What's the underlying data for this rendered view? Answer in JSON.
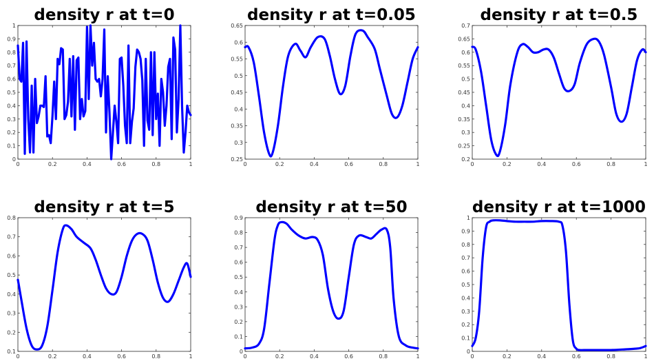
{
  "chart_data": [
    {
      "type": "line",
      "title": "density r at t=0",
      "xlim": [
        0,
        1
      ],
      "ylim": [
        0,
        1
      ],
      "xticks": [
        0,
        0.2,
        0.4,
        0.6,
        0.8,
        1
      ],
      "yticks": [
        0,
        0.1,
        0.2,
        0.3,
        0.4,
        0.5,
        0.6,
        0.7,
        0.8,
        0.9,
        1
      ],
      "xtick_labels": [
        "0",
        "0.2",
        "0.4",
        "0.6",
        "0.8",
        "1"
      ],
      "ytick_labels": [
        "0",
        "0.1",
        "0.2",
        "0.3",
        "0.4",
        "0.5",
        "0.6",
        "0.7",
        "0.8",
        "0.9",
        "1"
      ],
      "grid": false,
      "series": [
        {
          "color": "#0000ff",
          "x": [
            0,
            0.01,
            0.02,
            0.03,
            0.04,
            0.05,
            0.06,
            0.07,
            0.08,
            0.09,
            0.1,
            0.11,
            0.12,
            0.13,
            0.14,
            0.15,
            0.16,
            0.17,
            0.18,
            0.19,
            0.2,
            0.21,
            0.22,
            0.23,
            0.24,
            0.25,
            0.26,
            0.27,
            0.28,
            0.29,
            0.3,
            0.31,
            0.32,
            0.33,
            0.34,
            0.35,
            0.36,
            0.37,
            0.38,
            0.39,
            0.4,
            0.41,
            0.42,
            0.43,
            0.44,
            0.45,
            0.46,
            0.47,
            0.48,
            0.49,
            0.5,
            0.51,
            0.52,
            0.53,
            0.54,
            0.55,
            0.56,
            0.57,
            0.58,
            0.59,
            0.6,
            0.61,
            0.62,
            0.63,
            0.64,
            0.65,
            0.66,
            0.67,
            0.68,
            0.69,
            0.7,
            0.71,
            0.72,
            0.73,
            0.74,
            0.75,
            0.76,
            0.77,
            0.78,
            0.79,
            0.8,
            0.81,
            0.82,
            0.83,
            0.84,
            0.85,
            0.86,
            0.87,
            0.88,
            0.89,
            0.9,
            0.91,
            0.92,
            0.93,
            0.94,
            0.95,
            0.96,
            0.97,
            0.98,
            0.99,
            1
          ],
          "y": [
            0.85,
            0.6,
            0.58,
            0.87,
            0.04,
            0.88,
            0.3,
            0.05,
            0.55,
            0.05,
            0.6,
            0.27,
            0.32,
            0.4,
            0.4,
            0.39,
            0.62,
            0.17,
            0.18,
            0.12,
            0.32,
            0.58,
            0.3,
            0.75,
            0.71,
            0.83,
            0.82,
            0.3,
            0.33,
            0.43,
            0.75,
            0.32,
            0.77,
            0.22,
            0.74,
            0.76,
            0.3,
            0.45,
            0.32,
            0.36,
            0.99,
            0.45,
            1,
            0.7,
            0.87,
            0.6,
            0.58,
            0.6,
            0.47,
            0.6,
            0.97,
            0.2,
            0.62,
            0.35,
            0.0,
            0.2,
            0.4,
            0.28,
            0.12,
            0.75,
            0.76,
            0.55,
            0.25,
            0.12,
            0.85,
            0.12,
            0.28,
            0.38,
            0.69,
            0.82,
            0.8,
            0.75,
            0.59,
            0.1,
            0.75,
            0.29,
            0.22,
            0.8,
            0.18,
            0.8,
            0.3,
            0.49,
            0.1,
            0.6,
            0.5,
            0.25,
            0.4,
            0.69,
            0.75,
            0.15,
            0.91,
            0.82,
            0.2,
            0.45,
            1,
            0.4,
            0.05,
            0.2,
            0.4,
            0.35,
            0.33
          ]
        }
      ]
    },
    {
      "type": "line",
      "title": "density r at t=0.05",
      "xlim": [
        0,
        1
      ],
      "ylim": [
        0.25,
        0.65
      ],
      "xticks": [
        0,
        0.2,
        0.4,
        0.6,
        0.8,
        1
      ],
      "yticks": [
        0.25,
        0.3,
        0.35,
        0.4,
        0.45,
        0.5,
        0.55,
        0.6,
        0.65
      ],
      "xtick_labels": [
        "0",
        "0.2",
        "0.4",
        "0.6",
        "0.8",
        "1"
      ],
      "ytick_labels": [
        "0.25",
        "0.3",
        "0.35",
        "0.4",
        "0.45",
        "0.5",
        "0.55",
        "0.6",
        "0.65"
      ],
      "grid": false,
      "series": [
        {
          "color": "#0000ff",
          "x": [
            0,
            0.02,
            0.05,
            0.08,
            0.11,
            0.14,
            0.16,
            0.19,
            0.22,
            0.25,
            0.29,
            0.32,
            0.35,
            0.38,
            0.42,
            0.46,
            0.49,
            0.52,
            0.55,
            0.58,
            0.61,
            0.64,
            0.68,
            0.71,
            0.75,
            0.78,
            0.82,
            0.85,
            0.88,
            0.91,
            0.94,
            0.97,
            1
          ],
          "y": [
            0.585,
            0.585,
            0.54,
            0.44,
            0.33,
            0.265,
            0.27,
            0.35,
            0.47,
            0.56,
            0.595,
            0.575,
            0.555,
            0.585,
            0.615,
            0.61,
            0.56,
            0.49,
            0.445,
            0.47,
            0.56,
            0.625,
            0.635,
            0.615,
            0.58,
            0.52,
            0.44,
            0.385,
            0.375,
            0.41,
            0.48,
            0.55,
            0.585
          ]
        }
      ]
    },
    {
      "type": "line",
      "title": "density r at t=0.5",
      "xlim": [
        0,
        1
      ],
      "ylim": [
        0.2,
        0.7
      ],
      "xticks": [
        0,
        0.2,
        0.4,
        0.6,
        0.8,
        1
      ],
      "yticks": [
        0.2,
        0.25,
        0.3,
        0.35,
        0.4,
        0.45,
        0.5,
        0.55,
        0.6,
        0.65,
        0.7
      ],
      "xtick_labels": [
        "0",
        "0.2",
        "0.4",
        "0.6",
        "0.8",
        "1"
      ],
      "ytick_labels": [
        "0.2",
        "0.25",
        "0.3",
        "0.35",
        "0.4",
        "0.45",
        "0.5",
        "0.55",
        "0.6",
        "0.65",
        "0.7"
      ],
      "grid": false,
      "series": [
        {
          "color": "#0000ff",
          "x": [
            0,
            0.02,
            0.05,
            0.08,
            0.11,
            0.14,
            0.16,
            0.19,
            0.22,
            0.26,
            0.29,
            0.32,
            0.35,
            0.38,
            0.41,
            0.44,
            0.47,
            0.5,
            0.53,
            0.56,
            0.59,
            0.62,
            0.66,
            0.7,
            0.73,
            0.76,
            0.8,
            0.83,
            0.86,
            0.89,
            0.92,
            0.95,
            0.98,
            1
          ],
          "y": [
            0.62,
            0.61,
            0.53,
            0.4,
            0.27,
            0.215,
            0.23,
            0.33,
            0.48,
            0.6,
            0.63,
            0.62,
            0.6,
            0.6,
            0.61,
            0.61,
            0.58,
            0.52,
            0.465,
            0.455,
            0.48,
            0.56,
            0.63,
            0.65,
            0.64,
            0.59,
            0.47,
            0.37,
            0.34,
            0.37,
            0.47,
            0.57,
            0.61,
            0.6
          ]
        }
      ]
    },
    {
      "type": "line",
      "title": "density r at t=5",
      "xlim": [
        0,
        1
      ],
      "ylim": [
        0.1,
        0.8
      ],
      "xticks": [
        0,
        0.2,
        0.4,
        0.6,
        0.8,
        1
      ],
      "yticks": [
        0.1,
        0.2,
        0.3,
        0.4,
        0.5,
        0.6,
        0.7,
        0.8
      ],
      "xtick_labels": [
        "0",
        "0.2",
        "0.4",
        "0.6",
        "0.8",
        "1"
      ],
      "ytick_labels": [
        "0.1",
        "0.2",
        "0.3",
        "0.4",
        "0.5",
        "0.6",
        "0.7",
        "0.8"
      ],
      "grid": false,
      "series": [
        {
          "color": "#0000ff",
          "x": [
            0,
            0.02,
            0.05,
            0.08,
            0.11,
            0.14,
            0.17,
            0.2,
            0.23,
            0.26,
            0.28,
            0.31,
            0.34,
            0.38,
            0.42,
            0.45,
            0.48,
            0.51,
            0.54,
            0.57,
            0.6,
            0.63,
            0.66,
            0.69,
            0.72,
            0.75,
            0.78,
            0.81,
            0.84,
            0.87,
            0.9,
            0.93,
            0.96,
            0.98,
            1
          ],
          "y": [
            0.475,
            0.37,
            0.22,
            0.13,
            0.11,
            0.13,
            0.23,
            0.42,
            0.62,
            0.74,
            0.76,
            0.74,
            0.7,
            0.67,
            0.64,
            0.58,
            0.5,
            0.43,
            0.4,
            0.41,
            0.49,
            0.6,
            0.68,
            0.715,
            0.715,
            0.68,
            0.58,
            0.46,
            0.38,
            0.36,
            0.4,
            0.47,
            0.54,
            0.56,
            0.49
          ]
        }
      ]
    },
    {
      "type": "line",
      "title": "density r at t=50",
      "xlim": [
        0,
        1
      ],
      "ylim": [
        0,
        0.9
      ],
      "xticks": [
        0,
        0.2,
        0.4,
        0.6,
        0.8,
        1
      ],
      "yticks": [
        0,
        0.1,
        0.2,
        0.3,
        0.4,
        0.5,
        0.6,
        0.7,
        0.8,
        0.9
      ],
      "xtick_labels": [
        "0",
        "0.2",
        "0.4",
        "0.6",
        "0.8",
        "1"
      ],
      "ytick_labels": [
        "0",
        "0.1",
        "0.2",
        "0.3",
        "0.4",
        "0.5",
        "0.6",
        "0.7",
        "0.8",
        "0.9"
      ],
      "grid": false,
      "series": [
        {
          "color": "#0000ff",
          "x": [
            0,
            0.04,
            0.08,
            0.11,
            0.14,
            0.17,
            0.19,
            0.21,
            0.24,
            0.27,
            0.31,
            0.35,
            0.39,
            0.42,
            0.45,
            0.48,
            0.51,
            0.54,
            0.57,
            0.6,
            0.63,
            0.66,
            0.7,
            0.73,
            0.76,
            0.79,
            0.82,
            0.84,
            0.86,
            0.89,
            0.93,
            0.97,
            1
          ],
          "y": [
            0.02,
            0.025,
            0.05,
            0.15,
            0.45,
            0.75,
            0.85,
            0.87,
            0.86,
            0.82,
            0.78,
            0.76,
            0.77,
            0.75,
            0.65,
            0.42,
            0.27,
            0.22,
            0.27,
            0.5,
            0.72,
            0.78,
            0.77,
            0.76,
            0.79,
            0.82,
            0.82,
            0.7,
            0.35,
            0.1,
            0.04,
            0.025,
            0.02
          ]
        }
      ]
    },
    {
      "type": "line",
      "title": "density r at t=1000",
      "xlim": [
        0,
        1
      ],
      "ylim": [
        0,
        1
      ],
      "xticks": [
        0,
        0.2,
        0.4,
        0.6,
        0.8,
        1
      ],
      "yticks": [
        0,
        0.1,
        0.2,
        0.3,
        0.4,
        0.5,
        0.6,
        0.7,
        0.8,
        0.9,
        1
      ],
      "xtick_labels": [
        "0",
        "0.2",
        "0.4",
        "0.6",
        "0.8",
        "1"
      ],
      "ytick_labels": [
        "0",
        "0.1",
        "0.2",
        "0.3",
        "0.4",
        "0.5",
        "0.6",
        "0.7",
        "0.8",
        "0.9",
        "1"
      ],
      "grid": false,
      "series": [
        {
          "color": "#0000ff",
          "x": [
            0,
            0.02,
            0.04,
            0.06,
            0.08,
            0.1,
            0.12,
            0.16,
            0.2,
            0.25,
            0.3,
            0.35,
            0.4,
            0.45,
            0.5,
            0.52,
            0.54,
            0.56,
            0.58,
            0.6,
            0.62,
            0.66,
            0.72,
            0.8,
            0.88,
            0.94,
            0.97,
            1
          ],
          "y": [
            0.04,
            0.1,
            0.3,
            0.7,
            0.93,
            0.97,
            0.98,
            0.98,
            0.975,
            0.97,
            0.97,
            0.97,
            0.975,
            0.975,
            0.97,
            0.94,
            0.75,
            0.35,
            0.08,
            0.02,
            0.01,
            0.01,
            0.01,
            0.01,
            0.015,
            0.02,
            0.025,
            0.04
          ]
        }
      ]
    }
  ]
}
